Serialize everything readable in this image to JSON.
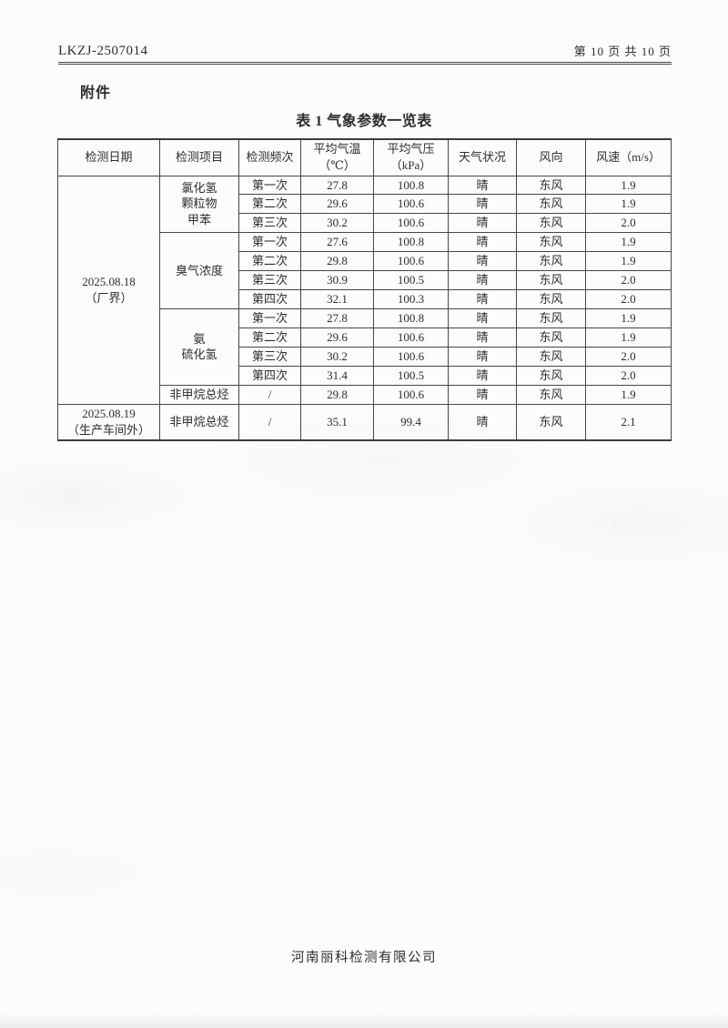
{
  "header": {
    "doc_number": "LKZJ-2507014",
    "page_info": "第 10 页 共 10 页"
  },
  "attachment_label": "附件",
  "footer": "河南丽科检测有限公司",
  "table": {
    "title": "表 1 气象参数一览表",
    "headers": [
      "检测日期",
      "检测项目",
      "检测频次",
      "平均气温\n（℃）",
      "平均气压\n（kPa）",
      "天气状况",
      "风向",
      "风速（m/s）"
    ],
    "groups": [
      {
        "date": "2025.08.18\n（厂界）",
        "items": [
          {
            "name": "氯化氢\n颗粒物\n甲苯",
            "rows": [
              [
                "第一次",
                "27.8",
                "100.8",
                "晴",
                "东风",
                "1.9"
              ],
              [
                "第二次",
                "29.6",
                "100.6",
                "晴",
                "东风",
                "1.9"
              ],
              [
                "第三次",
                "30.2",
                "100.6",
                "晴",
                "东风",
                "2.0"
              ]
            ]
          },
          {
            "name": "臭气浓度",
            "rows": [
              [
                "第一次",
                "27.6",
                "100.8",
                "晴",
                "东风",
                "1.9"
              ],
              [
                "第二次",
                "29.8",
                "100.6",
                "晴",
                "东风",
                "1.9"
              ],
              [
                "第三次",
                "30.9",
                "100.5",
                "晴",
                "东风",
                "2.0"
              ],
              [
                "第四次",
                "32.1",
                "100.3",
                "晴",
                "东风",
                "2.0"
              ]
            ]
          },
          {
            "name": "氨\n硫化氢",
            "rows": [
              [
                "第一次",
                "27.8",
                "100.8",
                "晴",
                "东风",
                "1.9"
              ],
              [
                "第二次",
                "29.6",
                "100.6",
                "晴",
                "东风",
                "1.9"
              ],
              [
                "第三次",
                "30.2",
                "100.6",
                "晴",
                "东风",
                "2.0"
              ],
              [
                "第四次",
                "31.4",
                "100.5",
                "晴",
                "东风",
                "2.0"
              ]
            ]
          },
          {
            "name": "非甲烷总烃",
            "rows": [
              [
                "/",
                "29.8",
                "100.6",
                "晴",
                "东风",
                "1.9"
              ]
            ]
          }
        ]
      },
      {
        "date": "2025.08.19\n（生产车间外）",
        "items": [
          {
            "name": "非甲烷总烃",
            "rows": [
              [
                "/",
                "35.1",
                "99.4",
                "晴",
                "东风",
                "2.1"
              ]
            ]
          }
        ]
      }
    ]
  }
}
